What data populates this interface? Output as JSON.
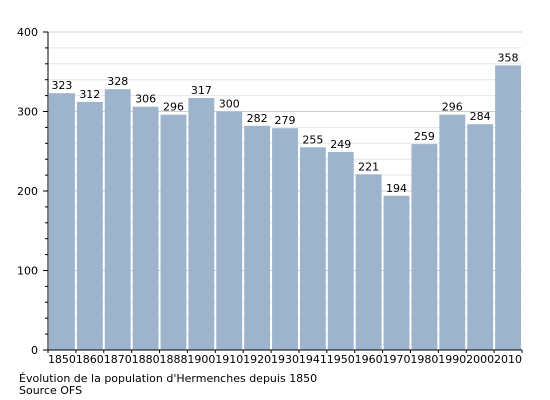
{
  "chart_data": {
    "type": "bar",
    "categories": [
      "1850",
      "1860",
      "1870",
      "1880",
      "1888",
      "1900",
      "1910",
      "1920",
      "1930",
      "1941",
      "1950",
      "1960",
      "1970",
      "1980",
      "1990",
      "2000",
      "2010"
    ],
    "values": [
      323,
      312,
      328,
      306,
      296,
      317,
      300,
      282,
      279,
      255,
      249,
      221,
      194,
      259,
      296,
      284,
      358
    ],
    "ylim": [
      0,
      400
    ],
    "yticks": [
      0,
      100,
      200,
      300,
      400
    ],
    "grid": true,
    "legend": "none",
    "bar_color": "#9db4cc",
    "title": "",
    "xlabel": "",
    "ylabel": ""
  },
  "caption": {
    "line1": "Évolution de la population d'Hermenches depuis 1850",
    "line2": "Source OFS"
  }
}
